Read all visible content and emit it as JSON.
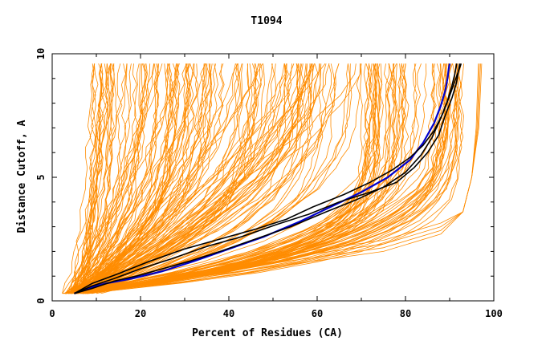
{
  "chart_data": {
    "type": "line",
    "title": "T1094",
    "xlabel": "Percent of Residues (CA)",
    "ylabel": "Distance Cutoff, A",
    "xlim": [
      0,
      100
    ],
    "ylim": [
      0,
      10
    ],
    "x_ticks": [
      "0",
      "20",
      "40",
      "60",
      "80",
      "100"
    ],
    "y_ticks": [
      "0",
      "5",
      "10"
    ],
    "grid": false,
    "legend": "none",
    "colors": {
      "background_series": "#ff8c00",
      "reference_series": "#000000",
      "highlight_series": "#0000cc",
      "axes": "#000000"
    },
    "series": [
      {
        "role": "highlight",
        "color": "#0000cc",
        "x": [
          5,
          8,
          12,
          18,
          25,
          32,
          40,
          48,
          56,
          63,
          70,
          76,
          81,
          84,
          86.5,
          88,
          89,
          89.5,
          89.8,
          90
        ],
        "y": [
          0.3,
          0.5,
          0.7,
          0.9,
          1.2,
          1.6,
          2.1,
          2.6,
          3.2,
          3.8,
          4.4,
          5.0,
          5.7,
          6.4,
          7.2,
          7.9,
          8.5,
          9.0,
          9.4,
          9.6
        ]
      },
      {
        "role": "reference",
        "color": "#000000",
        "x": [
          5,
          9,
          14,
          20,
          27,
          35,
          43,
          51,
          58,
          65,
          72,
          78,
          82,
          85,
          87.5,
          89,
          90.5,
          91.5,
          92,
          92.3
        ],
        "y": [
          0.3,
          0.6,
          0.9,
          1.3,
          1.7,
          2.2,
          2.6,
          3.1,
          3.5,
          4.0,
          4.4,
          4.8,
          5.4,
          6.0,
          6.7,
          7.5,
          8.2,
          8.8,
          9.3,
          9.6
        ]
      },
      {
        "role": "reference",
        "color": "#000000",
        "x": [
          5,
          9,
          15,
          22,
          30,
          38,
          46,
          53,
          59,
          66,
          72,
          77,
          81,
          84,
          86.5,
          88.5,
          90,
          91.2,
          92,
          92.6
        ],
        "y": [
          0.3,
          0.7,
          1.1,
          1.6,
          2.1,
          2.5,
          2.9,
          3.3,
          3.8,
          4.3,
          4.8,
          5.3,
          5.8,
          6.3,
          6.9,
          7.6,
          8.3,
          8.9,
          9.3,
          9.6
        ]
      },
      {
        "role": "reference",
        "color": "#000000",
        "x": [
          5,
          9,
          14,
          19,
          25,
          31,
          38,
          46,
          54,
          62,
          69,
          75,
          80,
          83.5,
          86,
          88,
          89.5,
          90.5,
          91.2,
          91.6
        ],
        "y": [
          0.3,
          0.5,
          0.8,
          1.0,
          1.3,
          1.6,
          2.0,
          2.5,
          3.0,
          3.6,
          4.1,
          4.6,
          5.2,
          5.9,
          6.6,
          7.4,
          8.1,
          8.7,
          9.2,
          9.6
        ]
      }
    ]
  }
}
